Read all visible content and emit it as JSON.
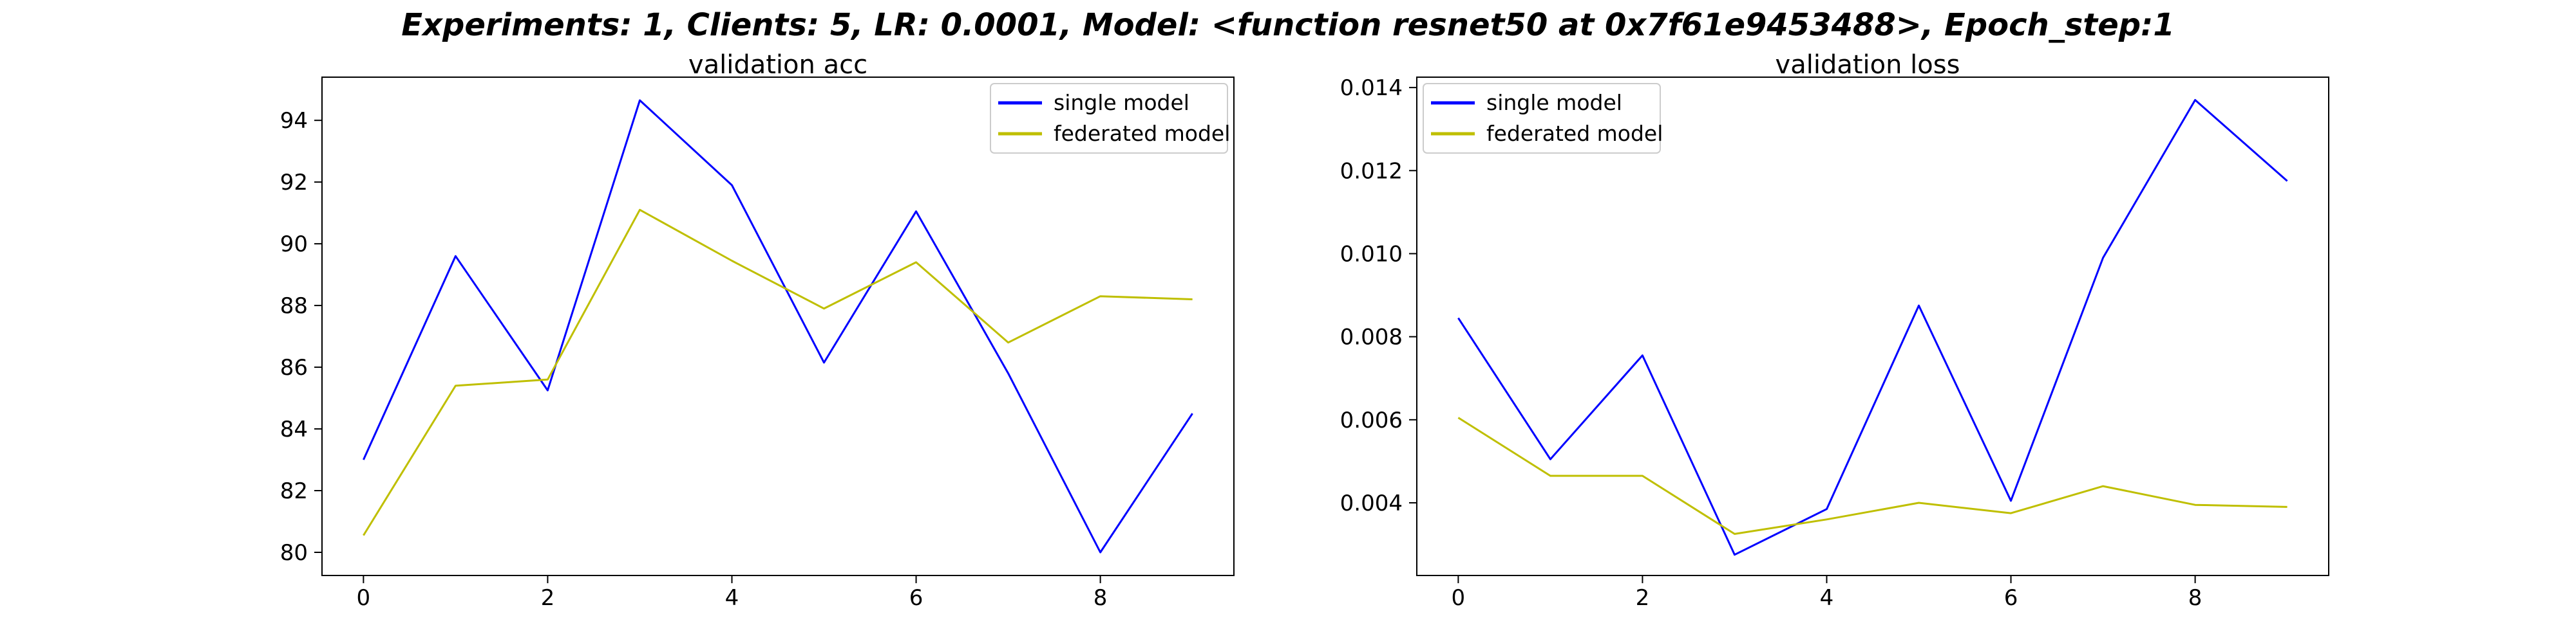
{
  "suptitle": "Experiments: 1, Clients: 5, LR: 0.0001, Model: <function resnet50 at 0x7f61e9453488>, Epoch_step:1",
  "colors": {
    "single model": "#0000ff",
    "federated model": "#bfbf00"
  },
  "chart_data": [
    {
      "type": "line",
      "title": "validation acc",
      "xlabel": "",
      "ylabel": "",
      "x": [
        0,
        1,
        2,
        3,
        4,
        5,
        6,
        7,
        8,
        9
      ],
      "xticks": [
        "0",
        "2",
        "4",
        "6",
        "8"
      ],
      "yticks": [
        "80",
        "82",
        "84",
        "86",
        "88",
        "90",
        "92",
        "94"
      ],
      "xlim": [
        -0.45,
        9.45
      ],
      "ylim": [
        79.25,
        95.4
      ],
      "legend_position": "upper right",
      "grid": false,
      "series": [
        {
          "name": "single model",
          "values": [
            83.0,
            89.6,
            85.25,
            94.65,
            91.9,
            86.15,
            91.05,
            85.8,
            80.0,
            84.5
          ]
        },
        {
          "name": "federated model",
          "values": [
            80.55,
            85.4,
            85.6,
            91.1,
            89.45,
            87.9,
            89.4,
            86.8,
            88.3,
            88.2
          ]
        }
      ]
    },
    {
      "type": "line",
      "title": "validation loss",
      "xlabel": "",
      "ylabel": "",
      "x": [
        0,
        1,
        2,
        3,
        4,
        5,
        6,
        7,
        8,
        9
      ],
      "xticks": [
        "0",
        "2",
        "4",
        "6",
        "8"
      ],
      "yticks": [
        "0.004",
        "0.006",
        "0.008",
        "0.010",
        "0.012",
        "0.014"
      ],
      "xlim": [
        -0.45,
        9.45
      ],
      "ylim": [
        0.00225,
        0.01425
      ],
      "legend_position": "upper left",
      "grid": false,
      "series": [
        {
          "name": "single model",
          "values": [
            0.00845,
            0.00505,
            0.00755,
            0.00275,
            0.00385,
            0.00875,
            0.00405,
            0.0099,
            0.0137,
            0.01175
          ]
        },
        {
          "name": "federated model",
          "values": [
            0.00605,
            0.00465,
            0.00465,
            0.00325,
            0.0036,
            0.004,
            0.00375,
            0.0044,
            0.00395,
            0.0039
          ]
        }
      ]
    }
  ]
}
